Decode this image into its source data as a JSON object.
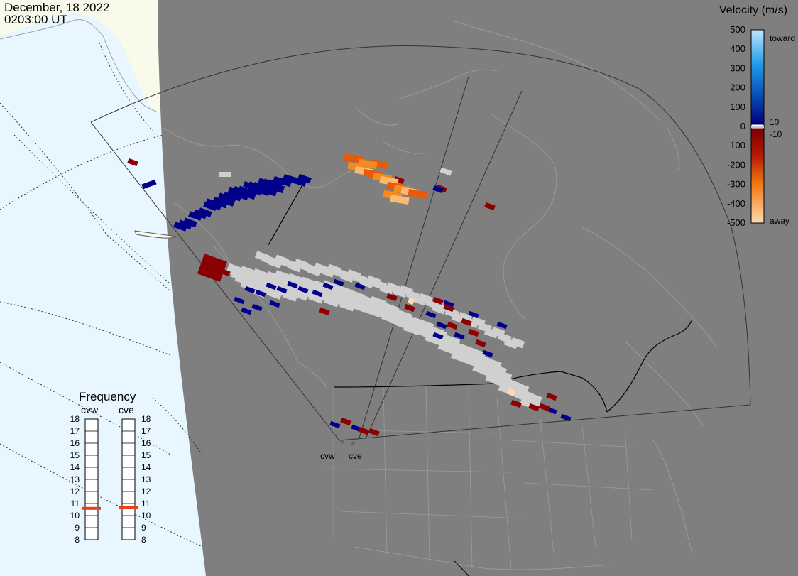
{
  "header": {
    "date": "December, 18 2022",
    "time": "0203:00 UT"
  },
  "colorbar": {
    "title": "Velocity (m/s)",
    "ticks": [
      "500",
      "400",
      "300",
      "200",
      "100",
      "0",
      "-100",
      "-200",
      "-300",
      "-400",
      "-500"
    ],
    "tick_values": [
      500,
      400,
      300,
      200,
      100,
      0,
      -100,
      -200,
      -300,
      -400,
      -500
    ],
    "toward_label": "toward",
    "away_label": "away",
    "ground_scatter_pos_label": "10",
    "ground_scatter_neg_label": "-10",
    "colors": {
      "toward_light": "#bfe6ff",
      "toward_mid": "#1f8fe6",
      "toward_dark": "#00008b",
      "away_dark": "#8b0000",
      "away_mid": "#e65a0a",
      "away_light": "#ffd9b3",
      "ground_scatter": "#d0d0d0"
    }
  },
  "frequency_panel": {
    "title": "Frequency",
    "radars": [
      "cvw",
      "cve"
    ],
    "scale": [
      "18",
      "17",
      "16",
      "15",
      "14",
      "13",
      "12",
      "11",
      "10",
      "9",
      "8"
    ],
    "scale_min": 8,
    "scale_max": 18,
    "cvw_freq_mhz": 10.6,
    "cve_freq_mhz": 10.7,
    "marker_color": "#e8401c"
  },
  "sites": {
    "cvw": "cvw",
    "cve": "cve"
  },
  "map": {
    "background": "#7f7f7f",
    "ocean_color": "#e8f6ff",
    "land_color": "#fafaeb"
  }
}
